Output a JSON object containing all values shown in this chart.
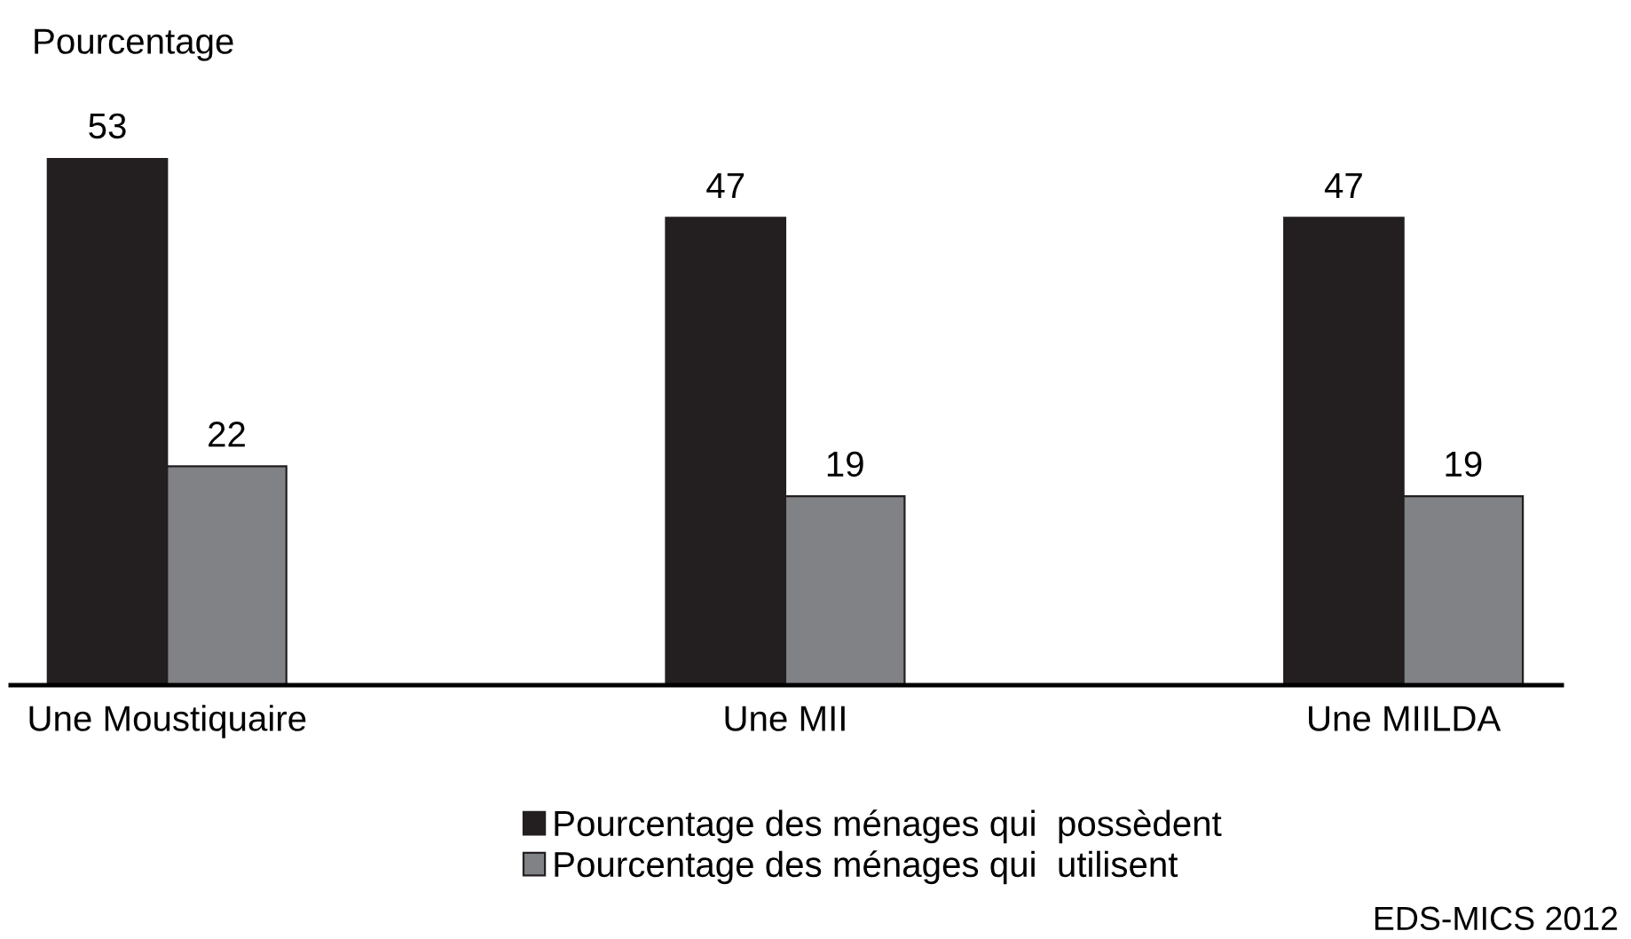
{
  "chart_data": {
    "type": "bar",
    "ylabel": "Pourcentage",
    "categories": [
      "Une Moustiquaire",
      "Une MII",
      "Une MIILDA"
    ],
    "series": [
      {
        "name": "Pourcentage des ménages qui  possèdent",
        "color": "#231f20",
        "values": [
          53,
          47,
          47
        ]
      },
      {
        "name": "Pourcentage des ménages qui  utilisent",
        "color": "#808285",
        "values": [
          22,
          19,
          19
        ]
      }
    ],
    "data_labels": true,
    "legend": "bottom",
    "annotations": [
      "EDS-MICS 2012"
    ]
  }
}
